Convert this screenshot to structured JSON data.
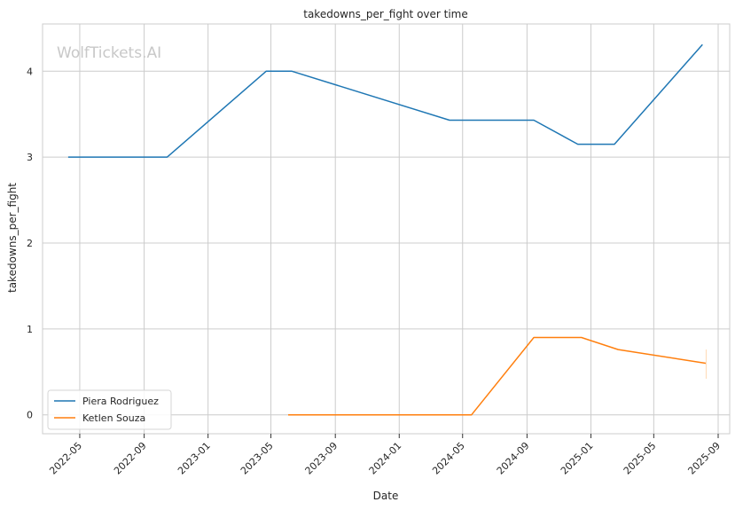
{
  "chart_data": {
    "type": "line",
    "title": "takedowns_per_fight over time",
    "xlabel": "Date",
    "ylabel": "takedowns_per_fight",
    "watermark": "WolfTickets.AI",
    "x_ticks": [
      "2022-05",
      "2022-09",
      "2023-01",
      "2023-05",
      "2023-09",
      "2024-01",
      "2024-05",
      "2024-09",
      "2025-01",
      "2025-05",
      "2025-09"
    ],
    "y_ticks": [
      "0",
      "1",
      "2",
      "3",
      "4"
    ],
    "ylim": [
      -0.22,
      4.55
    ],
    "xlim": [
      "2022-02-19",
      "2025-09-23"
    ],
    "grid": true,
    "legend_position": "lower-left",
    "colors": {
      "Piera Rodriguez": "#1f77b4",
      "Ketlen Souza": "#ff7f0e"
    },
    "series": [
      {
        "name": "Piera Rodriguez",
        "x": [
          "2022-04-09",
          "2022-10-15",
          "2023-04-22",
          "2023-06-10",
          "2024-04-06",
          "2024-09-14",
          "2024-12-07",
          "2025-02-15",
          "2025-08-02"
        ],
        "y": [
          3.0,
          3.0,
          4.0,
          4.0,
          3.43,
          3.43,
          3.15,
          3.15,
          4.31
        ]
      },
      {
        "name": "Ketlen Souza",
        "x": [
          "2023-06-03",
          "2024-05-18",
          "2024-09-14",
          "2024-12-14",
          "2025-02-22",
          "2025-08-09"
        ],
        "y": [
          0.0,
          0.0,
          0.9,
          0.9,
          0.76,
          0.6
        ]
      }
    ]
  }
}
